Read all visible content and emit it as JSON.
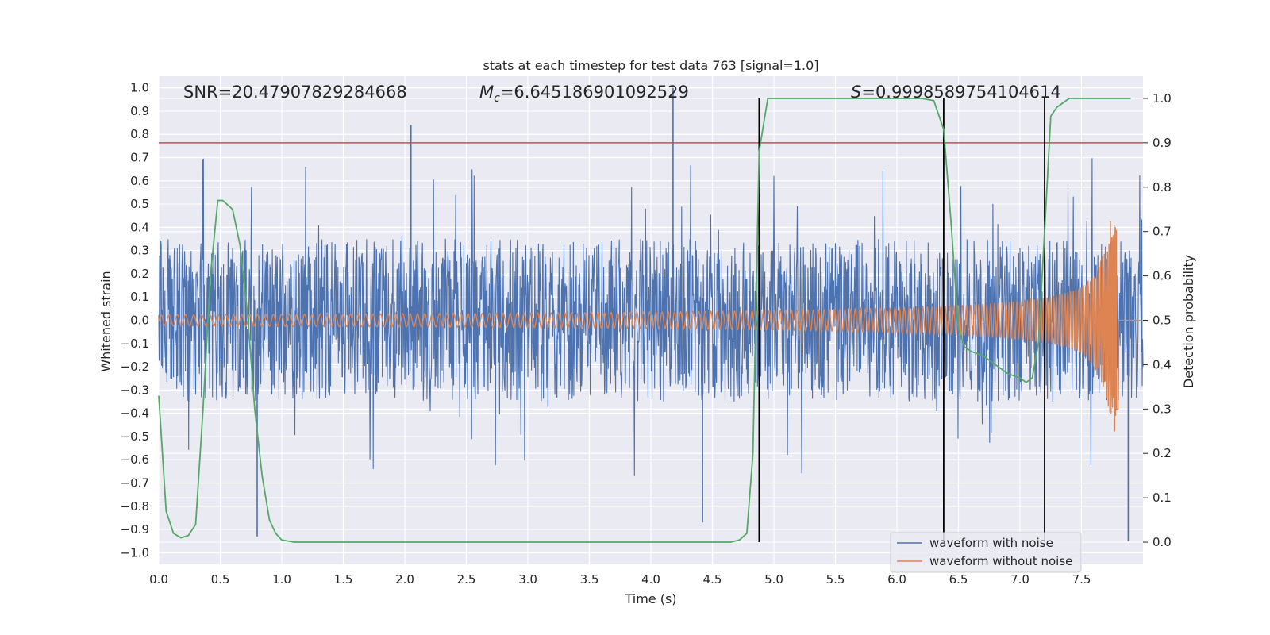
{
  "chart_data": {
    "type": "line",
    "title": "stats at each timestep for test data 763 [signal=1.0]",
    "xlabel": "Time (s)",
    "ylabel": "Whitened strain",
    "y2label": "Detection probability",
    "xlim": [
      0.0,
      8.0
    ],
    "ylim": [
      -1.05,
      1.05
    ],
    "y2lim": [
      -0.05,
      1.05
    ],
    "x_ticks": [
      "0.0",
      "0.5",
      "1.0",
      "1.5",
      "2.0",
      "2.5",
      "3.0",
      "3.5",
      "4.0",
      "4.5",
      "5.0",
      "5.5",
      "6.0",
      "6.5",
      "7.0",
      "7.5"
    ],
    "x_tick_values": [
      0.0,
      0.5,
      1.0,
      1.5,
      2.0,
      2.5,
      3.0,
      3.5,
      4.0,
      4.5,
      5.0,
      5.5,
      6.0,
      6.5,
      7.0,
      7.5
    ],
    "y_ticks": [
      "1.0",
      "0.9",
      "0.8",
      "0.7",
      "0.6",
      "0.5",
      "0.4",
      "0.3",
      "0.2",
      "0.1",
      "0.0",
      "−0.1",
      "−0.2",
      "−0.3",
      "−0.4",
      "−0.5",
      "−0.6",
      "−0.7",
      "−0.8",
      "−0.9",
      "−1.0"
    ],
    "y_tick_values": [
      1.0,
      0.9,
      0.8,
      0.7,
      0.6,
      0.5,
      0.4,
      0.3,
      0.2,
      0.1,
      0.0,
      -0.1,
      -0.2,
      -0.3,
      -0.4,
      -0.5,
      -0.6,
      -0.7,
      -0.8,
      -0.9,
      -1.0
    ],
    "y2_ticks": [
      "1.0",
      "0.9",
      "0.8",
      "0.7",
      "0.6",
      "0.5",
      "0.4",
      "0.3",
      "0.2",
      "0.1",
      "0.0"
    ],
    "y2_tick_values": [
      1.0,
      0.9,
      0.8,
      0.7,
      0.6,
      0.5,
      0.4,
      0.3,
      0.2,
      0.1,
      0.0
    ],
    "annotations": {
      "snr": "SNR=20.47907829284668",
      "mc_prefix": "M",
      "mc_sub": "c",
      "mc_value": "=6.645186901092529",
      "s_prefix": "S",
      "s_value": "=0.9998589754104614"
    },
    "threshold": {
      "y2": 0.9,
      "color": "#c44e52"
    },
    "vertical_lines_x": [
      4.88,
      6.38,
      7.2
    ],
    "series": [
      {
        "name": "waveform with noise",
        "color": "#4c72b0",
        "description": "whitened noisy strain, roughly ±0.35 band with spikes to ±0.85",
        "envelope": 0.35,
        "peaks": [
          [
            2.05,
            0.84
          ],
          [
            4.18,
            1.0
          ],
          [
            0.8,
            -0.93
          ],
          [
            4.42,
            -0.87
          ],
          [
            7.88,
            -0.95
          ]
        ]
      },
      {
        "name": "waveform without noise",
        "color": "#dd8452",
        "description": "chirp amplitude growing from ~0.02 to ~0.48 before merger near 7.8 s",
        "merger_x": 7.8
      },
      {
        "name": "detection probability",
        "axis": "y2",
        "color": "#55a868",
        "x": [
          0.0,
          0.06,
          0.12,
          0.18,
          0.24,
          0.3,
          0.36,
          0.42,
          0.48,
          0.52,
          0.6,
          0.66,
          0.72,
          0.78,
          0.84,
          0.9,
          0.95,
          1.0,
          1.1,
          1.5,
          2.0,
          2.5,
          3.0,
          3.5,
          4.0,
          4.5,
          4.65,
          4.72,
          4.78,
          4.83,
          4.88,
          4.95,
          5.0,
          5.5,
          6.0,
          6.2,
          6.3,
          6.38,
          6.44,
          6.5,
          6.55,
          6.6,
          6.7,
          6.8,
          6.9,
          7.0,
          7.05,
          7.1,
          7.15,
          7.2,
          7.25,
          7.3,
          7.4,
          7.6,
          7.9
        ],
        "y": [
          0.33,
          0.07,
          0.02,
          0.01,
          0.015,
          0.04,
          0.3,
          0.6,
          0.77,
          0.77,
          0.75,
          0.67,
          0.52,
          0.3,
          0.15,
          0.05,
          0.02,
          0.005,
          0.0,
          0.0,
          0.0,
          0.0,
          0.0,
          0.0,
          0.0,
          0.0,
          0.0,
          0.005,
          0.02,
          0.2,
          0.88,
          1.0,
          1.0,
          1.0,
          1.0,
          1.0,
          0.995,
          0.93,
          0.72,
          0.48,
          0.44,
          0.43,
          0.42,
          0.4,
          0.38,
          0.37,
          0.36,
          0.37,
          0.45,
          0.7,
          0.96,
          0.98,
          1.0,
          1.0,
          1.0
        ]
      }
    ],
    "legend": {
      "placement": "lower-right",
      "entries": [
        "waveform with noise",
        "waveform without noise"
      ]
    }
  }
}
